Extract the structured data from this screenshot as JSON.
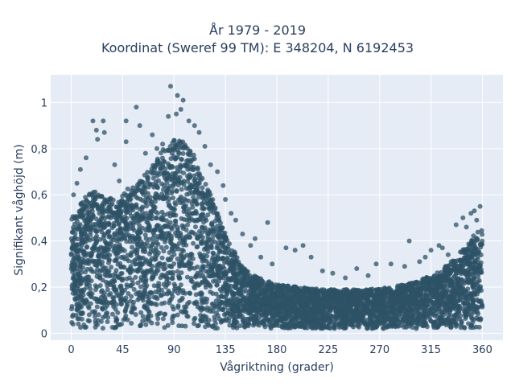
{
  "chart_data": {
    "type": "scatter",
    "title_line1": "År 1979 - 2019",
    "title_line2": "Koordinat (Sweref 99 TM): E 348204, N 6192453",
    "xlabel": "Vågriktning (grader)",
    "ylabel": "Signifikant våghöjd (m)",
    "xlim": [
      -18,
      378
    ],
    "ylim": [
      -0.03,
      1.12
    ],
    "xticks": [
      0,
      45,
      90,
      135,
      180,
      225,
      270,
      315,
      360
    ],
    "xtick_labels": [
      "0",
      "45",
      "90",
      "135",
      "180",
      "225",
      "270",
      "315",
      "360"
    ],
    "yticks": [
      0,
      0.2,
      0.4,
      0.6,
      0.8,
      1
    ],
    "ytick_labels": [
      "0",
      "0,2",
      "0,4",
      "0,6",
      "0,8",
      "1"
    ],
    "grid": true,
    "plot_bg": "#e5ecf6",
    "marker_color": "#2e5266",
    "envelope": {
      "x": [
        0,
        10,
        20,
        30,
        40,
        50,
        60,
        70,
        80,
        90,
        100,
        110,
        120,
        130,
        140,
        150,
        160,
        170,
        180,
        200,
        220,
        240,
        260,
        280,
        300,
        320,
        330,
        340,
        350,
        355,
        360
      ],
      "y": [
        0.5,
        0.58,
        0.62,
        0.6,
        0.58,
        0.63,
        0.66,
        0.72,
        0.8,
        0.84,
        0.83,
        0.75,
        0.63,
        0.5,
        0.38,
        0.29,
        0.25,
        0.23,
        0.21,
        0.2,
        0.19,
        0.19,
        0.19,
        0.2,
        0.22,
        0.26,
        0.3,
        0.35,
        0.4,
        0.45,
        0.45
      ]
    },
    "outliers": [
      {
        "x": 87,
        "y": 1.07
      },
      {
        "x": 93,
        "y": 1.03
      },
      {
        "x": 98,
        "y": 1.01
      },
      {
        "x": 96,
        "y": 0.97
      },
      {
        "x": 92,
        "y": 0.95
      },
      {
        "x": 85,
        "y": 0.94
      },
      {
        "x": 57,
        "y": 0.98
      },
      {
        "x": 48,
        "y": 0.92
      },
      {
        "x": 19,
        "y": 0.92
      },
      {
        "x": 28,
        "y": 0.92
      },
      {
        "x": 22,
        "y": 0.88
      },
      {
        "x": 29,
        "y": 0.87
      },
      {
        "x": 23,
        "y": 0.84
      },
      {
        "x": 48,
        "y": 0.83
      },
      {
        "x": 60,
        "y": 0.9
      },
      {
        "x": 71,
        "y": 0.86
      },
      {
        "x": 103,
        "y": 0.92
      },
      {
        "x": 108,
        "y": 0.9
      },
      {
        "x": 112,
        "y": 0.87
      },
      {
        "x": 133,
        "y": 0.64
      },
      {
        "x": 135,
        "y": 0.58
      },
      {
        "x": 140,
        "y": 0.52
      },
      {
        "x": 144,
        "y": 0.49
      },
      {
        "x": 161,
        "y": 0.41
      },
      {
        "x": 172,
        "y": 0.48
      },
      {
        "x": 203,
        "y": 0.38
      },
      {
        "x": 196,
        "y": 0.36
      },
      {
        "x": 188,
        "y": 0.37
      },
      {
        "x": 210,
        "y": 0.33
      },
      {
        "x": 229,
        "y": 0.26
      },
      {
        "x": 250,
        "y": 0.28
      },
      {
        "x": 267,
        "y": 0.3
      },
      {
        "x": 280,
        "y": 0.3
      },
      {
        "x": 292,
        "y": 0.29
      },
      {
        "x": 296,
        "y": 0.4
      },
      {
        "x": 315,
        "y": 0.36
      },
      {
        "x": 322,
        "y": 0.38
      },
      {
        "x": 330,
        "y": 0.34
      },
      {
        "x": 337,
        "y": 0.47
      },
      {
        "x": 343,
        "y": 0.5
      },
      {
        "x": 350,
        "y": 0.52
      },
      {
        "x": 353,
        "y": 0.53
      },
      {
        "x": 358,
        "y": 0.55
      },
      {
        "x": 355,
        "y": 0.49
      },
      {
        "x": 346,
        "y": 0.46
      },
      {
        "x": 13,
        "y": 0.76
      },
      {
        "x": 8,
        "y": 0.71
      },
      {
        "x": 5,
        "y": 0.65
      },
      {
        "x": 75,
        "y": 0.8
      },
      {
        "x": 80,
        "y": 0.82
      },
      {
        "x": 117,
        "y": 0.81
      },
      {
        "x": 122,
        "y": 0.73
      },
      {
        "x": 128,
        "y": 0.7
      },
      {
        "x": 2,
        "y": 0.6
      },
      {
        "x": 38,
        "y": 0.73
      },
      {
        "x": 65,
        "y": 0.78
      },
      {
        "x": 42,
        "y": 0.66
      },
      {
        "x": 150,
        "y": 0.43
      },
      {
        "x": 157,
        "y": 0.38
      },
      {
        "x": 166,
        "y": 0.33
      },
      {
        "x": 176,
        "y": 0.3
      },
      {
        "x": 220,
        "y": 0.27
      },
      {
        "x": 240,
        "y": 0.24
      },
      {
        "x": 260,
        "y": 0.25
      },
      {
        "x": 305,
        "y": 0.31
      },
      {
        "x": 325,
        "y": 0.37
      },
      {
        "x": 310,
        "y": 0.33
      }
    ]
  }
}
